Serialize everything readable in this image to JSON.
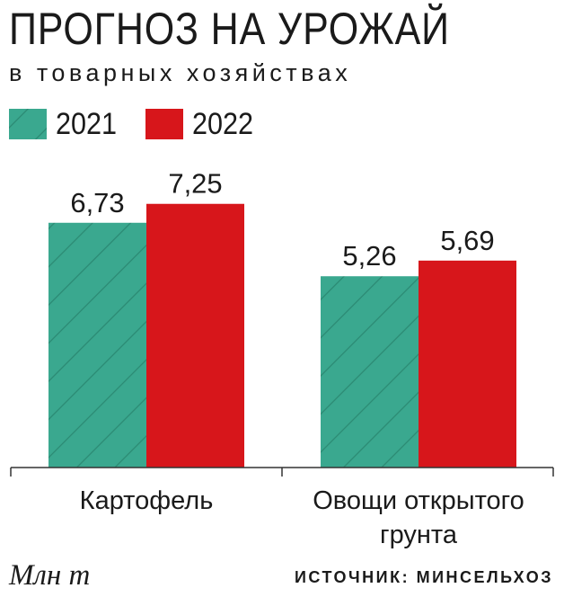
{
  "header": {
    "title": "ПРОГНОЗ НА УРОЖАЙ",
    "subtitle": "в товарных хозяйствах"
  },
  "footer": {
    "unit": "Млн т",
    "source": "ИСТОЧНИК: МИНСЕЛЬХОЗ"
  },
  "colors": {
    "series_2021": "#3aa88f",
    "series_2021_hatch": "#1f6f5c",
    "series_2022": "#d7161b",
    "axis": "#333333"
  },
  "chart_data": {
    "type": "bar",
    "title": "ПРОГНОЗ НА УРОЖАЙ",
    "subtitle": "в товарных хозяйствах",
    "categories": [
      "Картофель",
      "Овощи открытого грунта"
    ],
    "category_lines": [
      [
        "Картофель"
      ],
      [
        "Овощи открытого",
        "грунта"
      ]
    ],
    "series": [
      {
        "name": "2021",
        "values": [
          6.73,
          5.26
        ],
        "labels": [
          "6,73",
          "5,26"
        ]
      },
      {
        "name": "2022",
        "values": [
          7.25,
          5.69
        ],
        "labels": [
          "7,25",
          "5,69"
        ]
      }
    ],
    "ylabel": "Млн т",
    "ylim": [
      0,
      8.9
    ],
    "grid": false,
    "legend": "top-left"
  }
}
